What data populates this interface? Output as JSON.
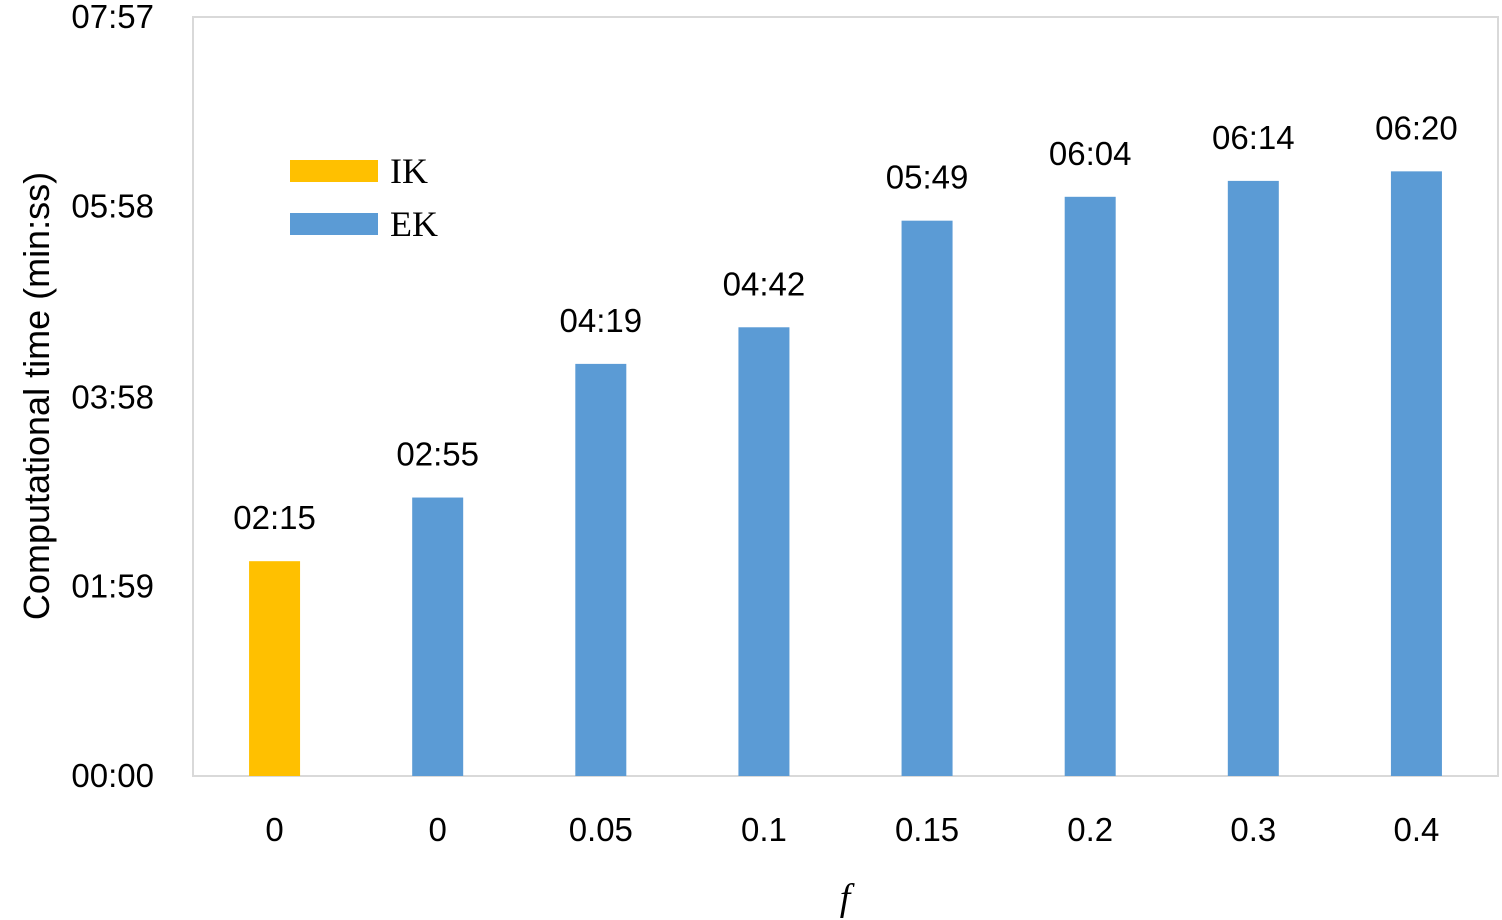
{
  "chart_data": {
    "type": "bar",
    "xlabel": "f",
    "ylabel": "Computational time (min:ss)",
    "categories": [
      "0",
      "0",
      "0.05",
      "0.1",
      "0.15",
      "0.2",
      "0.3",
      "0.4"
    ],
    "values_seconds": [
      135,
      175,
      259,
      282,
      349,
      364,
      374,
      380
    ],
    "value_labels": [
      "02:15",
      "02:55",
      "04:19",
      "04:42",
      "05:49",
      "06:04",
      "06:14",
      "06:20"
    ],
    "bar_series": [
      "IK",
      "EK",
      "EK",
      "EK",
      "EK",
      "EK",
      "EK",
      "EK"
    ],
    "series": [
      {
        "name": "IK",
        "color": "#FFC000"
      },
      {
        "name": "EK",
        "color": "#5B9BD5"
      }
    ],
    "ylim_seconds": [
      0,
      477
    ],
    "yticks_seconds": [
      0,
      119,
      238,
      358,
      477
    ],
    "ytick_labels": [
      "00:00",
      "01:59",
      "03:58",
      "05:58",
      "07:57"
    ],
    "grid": false,
    "legend_position": "top-left"
  }
}
